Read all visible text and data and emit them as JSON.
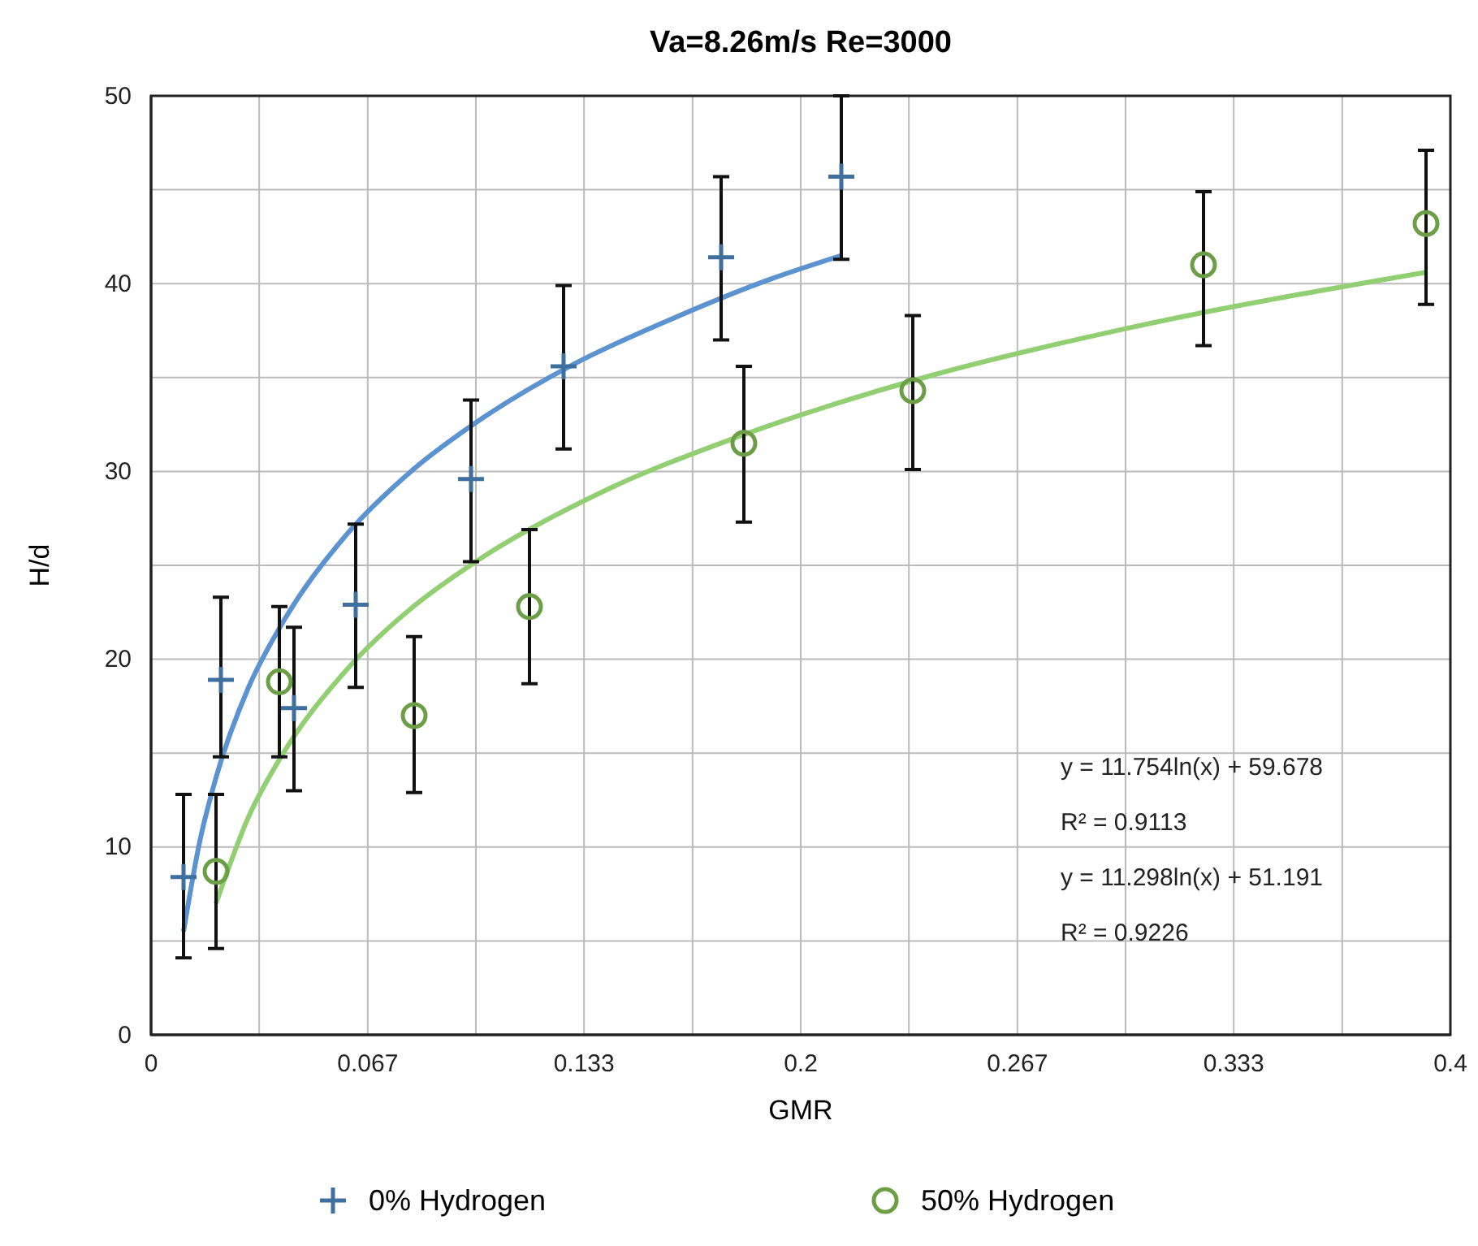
{
  "chart_data": {
    "type": "scatter",
    "title": "Va=8.26m/s Re=3000",
    "xlabel": "GMR",
    "ylabel": "H/d",
    "xlim": [
      0,
      0.4
    ],
    "ylim": [
      0,
      50
    ],
    "xticks": [
      0,
      {
        "value": 0.0333,
        "label": null
      },
      {
        "value": 0.0667,
        "label": "0.067"
      },
      {
        "value": 0.1,
        "label": null
      },
      {
        "value": 0.1333,
        "label": "0.133"
      },
      {
        "value": 0.1667,
        "label": null
      },
      0.2,
      {
        "value": 0.2333,
        "label": null
      },
      {
        "value": 0.2667,
        "label": "0.267"
      },
      {
        "value": 0.3,
        "label": null
      },
      {
        "value": 0.3333,
        "label": "0.333"
      },
      {
        "value": 0.3667,
        "label": null
      },
      0.4
    ],
    "yticks": [
      0,
      {
        "value": 5,
        "label": null
      },
      10,
      {
        "value": 15,
        "label": null
      },
      20,
      {
        "value": 25,
        "label": null
      },
      30,
      {
        "value": 35,
        "label": null
      },
      40,
      {
        "value": 45,
        "label": null
      },
      50
    ],
    "grid": true,
    "legend": "bottom",
    "series": [
      {
        "name": "0% Hydrogen",
        "color": "#3f6f9f",
        "marker": "cross",
        "x": [
          0.01,
          0.0215,
          0.044,
          0.063,
          0.0985,
          0.127,
          0.1755,
          0.2125
        ],
        "values": [
          8.4,
          18.9,
          17.4,
          22.9,
          29.6,
          35.6,
          41.4,
          45.7
        ],
        "errors": [
          [
            4.1,
            12.8
          ],
          [
            14.8,
            23.3
          ],
          [
            13.0,
            21.7
          ],
          [
            18.5,
            27.2
          ],
          [
            25.2,
            33.8
          ],
          [
            31.2,
            39.9
          ],
          [
            37.0,
            45.7
          ],
          [
            41.3,
            50.0
          ]
        ]
      },
      {
        "name": "50% Hydrogen",
        "color": "#6b9e45",
        "marker": "circle",
        "x": [
          0.02,
          0.0395,
          0.081,
          0.1165,
          0.1825,
          0.2345,
          0.324,
          0.3925
        ],
        "values": [
          8.7,
          18.8,
          17.0,
          22.8,
          31.5,
          34.3,
          41.0,
          43.2
        ],
        "errors": [
          [
            4.6,
            12.8
          ],
          [
            14.8,
            22.8
          ],
          [
            12.9,
            21.2
          ],
          [
            18.7,
            26.9
          ],
          [
            27.3,
            35.6
          ],
          [
            30.1,
            38.3
          ],
          [
            36.7,
            44.9
          ],
          [
            38.9,
            47.1
          ]
        ]
      },
      {
        "type": "line",
        "color": "#5b93d0",
        "marker": "none",
        "x": [
          0.01,
          0.015,
          0.02,
          0.03,
          0.04,
          0.06,
          0.08,
          0.1,
          0.13,
          0.16,
          0.19,
          0.2125
        ],
        "values": [
          5.5,
          10.3,
          13.7,
          18.5,
          21.8,
          26.6,
          30.0,
          32.6,
          35.7,
          38.1,
          40.2,
          41.5
        ]
      },
      {
        "type": "line",
        "color": "#92cf72",
        "marker": "none",
        "x": [
          0.02,
          0.03,
          0.04,
          0.06,
          0.08,
          0.1,
          0.14,
          0.18,
          0.24,
          0.3,
          0.3925
        ],
        "values": [
          7.0,
          11.6,
          14.8,
          19.4,
          22.7,
          25.2,
          29.0,
          31.8,
          35.1,
          37.6,
          40.6
        ]
      }
    ],
    "annotations": [
      "y = 11.754ln(x) + 59.678",
      "R² = 0.9113",
      "y = 11.298ln(x) + 51.191",
      "R² = 0.9226"
    ]
  }
}
